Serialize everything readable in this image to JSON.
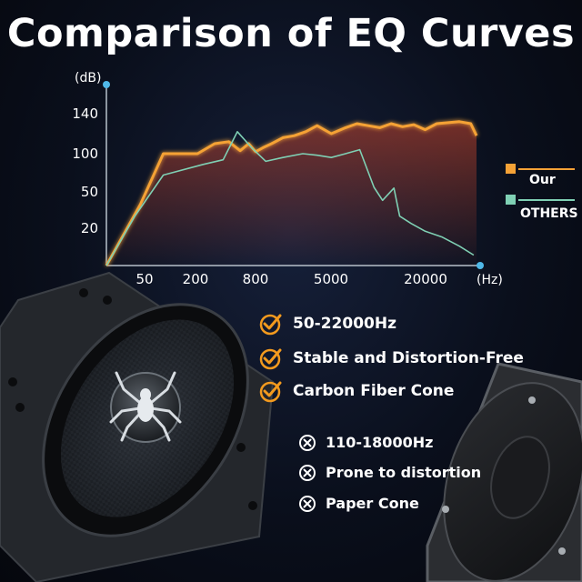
{
  "title": "Comparison of EQ Curves",
  "colors": {
    "our": "#f5a236",
    "others": "#7fd0b4",
    "axis": "#b8c2cc",
    "axis_dot": "#4fb8e8",
    "check": "#f39a1e"
  },
  "chart_data": {
    "type": "line",
    "title": "Comparison of EQ Curves",
    "ylabel": "(dB)",
    "xlabel": "(Hz)",
    "y_ticks": [
      "140",
      "100",
      "50",
      "20"
    ],
    "x_ticks": [
      "50",
      "200",
      "800",
      "5000",
      "20000"
    ],
    "x_scale": "categorical-log",
    "grid": false,
    "legend_position": "right",
    "series": [
      {
        "name": "Our",
        "x": [
          0,
          0.6,
          1.0,
          1.6,
          1.9,
          2.15,
          2.35,
          2.5,
          2.62,
          2.75,
          2.9,
          3.1,
          3.3,
          3.5,
          3.7,
          3.95,
          4.2,
          4.4,
          4.6,
          4.8,
          5.0,
          5.2,
          5.4,
          5.6,
          5.8,
          6.0,
          6.2,
          6.4,
          6.5
        ],
        "y": [
          -5,
          40,
          100,
          100,
          110,
          112,
          103,
          110,
          102,
          106,
          110,
          116,
          118,
          122,
          128,
          120,
          126,
          130,
          128,
          126,
          130,
          127,
          129,
          124,
          130,
          131,
          132,
          130,
          118
        ]
      },
      {
        "name": "OTHERS",
        "x": [
          0,
          0.5,
          1.0,
          1.7,
          2.05,
          2.3,
          2.55,
          2.8,
          3.1,
          3.45,
          3.7,
          3.95,
          4.2,
          4.45,
          4.7,
          4.85,
          5.05,
          5.15,
          5.35,
          5.6,
          5.9,
          6.2,
          6.45
        ],
        "y": [
          -5,
          30,
          72,
          86,
          92,
          122,
          106,
          90,
          95,
          100,
          98,
          95,
          100,
          104,
          56,
          43,
          55,
          30,
          24,
          18,
          14,
          8,
          2
        ]
      }
    ]
  },
  "features": [
    {
      "icon": "check-icon",
      "text": "50-22000Hz"
    },
    {
      "icon": "check-icon",
      "text": "Stable and Distortion-Free"
    },
    {
      "icon": "check-icon",
      "text": "Carbon Fiber Cone"
    }
  ],
  "downsides": [
    {
      "icon": "x-circle-icon",
      "text": "110-18000Hz"
    },
    {
      "icon": "x-circle-icon",
      "text": "Prone to distortion"
    },
    {
      "icon": "x-circle-icon",
      "text": "Paper Cone"
    }
  ]
}
